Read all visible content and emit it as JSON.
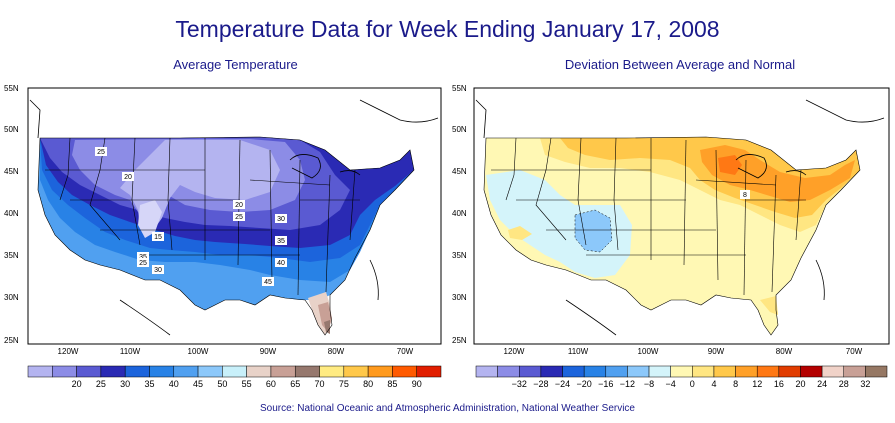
{
  "title": "Temperature Data for Week Ending January 17, 2008",
  "source": "Source:  National Oceanic and Atmospheric Administration, National Weather Service",
  "maps": [
    {
      "subtitle": "Average Temperature",
      "lat_labels": [
        "55N",
        "50N",
        "45N",
        "40N",
        "35N",
        "30N",
        "25N"
      ],
      "lon_labels": [
        "120W",
        "110W",
        "100W",
        "90W",
        "80W",
        "70W"
      ],
      "contour_labels": [
        "25",
        "20",
        "20",
        "25",
        "30",
        "15",
        "35",
        "25",
        "30",
        "35",
        "40",
        "45"
      ],
      "legend": {
        "labels": [
          "20",
          "25",
          "30",
          "35",
          "40",
          "45",
          "50",
          "55",
          "60",
          "65",
          "70",
          "75",
          "80",
          "85",
          "90"
        ],
        "colors": [
          "#b4b4f0",
          "#8c8ce6",
          "#5a5ad2",
          "#2a2ab4",
          "#1c64dc",
          "#2882e6",
          "#50a0f0",
          "#8cc8fa",
          "#c8f0fa",
          "#e8d2c8",
          "#c8a096",
          "#96786e",
          "#ffeb82",
          "#ffc84a",
          "#ff9a1e",
          "#ff5a00",
          "#e11e00"
        ]
      }
    },
    {
      "subtitle": "Deviation Between Average and Normal",
      "lat_labels": [
        "55N",
        "50N",
        "45N",
        "40N",
        "35N",
        "30N",
        "25N"
      ],
      "lon_labels": [
        "120W",
        "110W",
        "100W",
        "90W",
        "80W",
        "70W"
      ],
      "contour_labels": [
        "8"
      ],
      "legend": {
        "labels": [
          "−32",
          "−28",
          "−24",
          "−20",
          "−16",
          "−12",
          "−8",
          "−4",
          "0",
          "4",
          "8",
          "12",
          "16",
          "20",
          "24",
          "28",
          "32"
        ],
        "colors": [
          "#b4b4f0",
          "#8c8ce6",
          "#5a5ad2",
          "#2a2ab4",
          "#1c64dc",
          "#2882e6",
          "#50a0f0",
          "#8cc8fa",
          "#d4f4fa",
          "#fff8b4",
          "#ffe682",
          "#ffc84a",
          "#ffa028",
          "#ff7814",
          "#e13c00",
          "#b40000",
          "#f0d2c8",
          "#c8a096",
          "#967864"
        ]
      }
    }
  ]
}
